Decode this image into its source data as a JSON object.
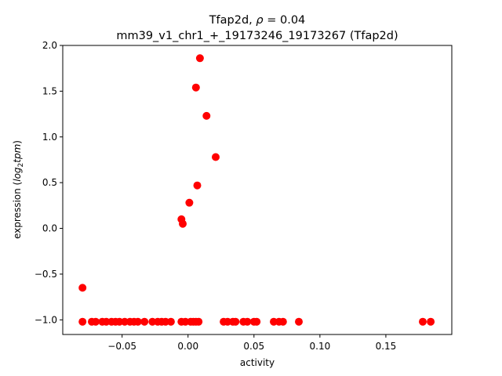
{
  "chart_data": {
    "type": "scatter",
    "title_line1_prefix": "Tfap2d, ",
    "title_line1_rho": "ρ",
    "title_line1_suffix": " = 0.04",
    "title_line2": "mm39_v1_chr1_+_19173246_19173267 (Tfap2d)",
    "xlabel": "activity",
    "ylabel_prefix": "expression (",
    "ylabel_log": "log",
    "ylabel_sub": "2",
    "ylabel_tpm": "tpm",
    "ylabel_suffix": ")",
    "xlim": [
      -0.095,
      0.2
    ],
    "ylim": [
      -1.16,
      2.0
    ],
    "xticks": [
      -0.05,
      0.0,
      0.05,
      0.1,
      0.15
    ],
    "xtick_labels": [
      "−0.05",
      "0.00",
      "0.05",
      "0.10",
      "0.15"
    ],
    "yticks": [
      -1.0,
      -0.5,
      0.0,
      0.5,
      1.0,
      1.5,
      2.0
    ],
    "ytick_labels": [
      "−1.0",
      "−0.5",
      "0.0",
      "0.5",
      "1.0",
      "1.5",
      "2.0"
    ],
    "marker_color": "#ff0000",
    "grid": false,
    "points": [
      {
        "x": -0.08,
        "y": -0.65
      },
      {
        "x": -0.08,
        "y": -1.02
      },
      {
        "x": -0.073,
        "y": -1.02
      },
      {
        "x": -0.07,
        "y": -1.02
      },
      {
        "x": -0.065,
        "y": -1.02
      },
      {
        "x": -0.062,
        "y": -1.02
      },
      {
        "x": -0.058,
        "y": -1.02
      },
      {
        "x": -0.055,
        "y": -1.02
      },
      {
        "x": -0.052,
        "y": -1.02
      },
      {
        "x": -0.048,
        "y": -1.02
      },
      {
        "x": -0.044,
        "y": -1.02
      },
      {
        "x": -0.041,
        "y": -1.02
      },
      {
        "x": -0.038,
        "y": -1.02
      },
      {
        "x": -0.033,
        "y": -1.02
      },
      {
        "x": -0.027,
        "y": -1.02
      },
      {
        "x": -0.023,
        "y": -1.02
      },
      {
        "x": -0.02,
        "y": -1.02
      },
      {
        "x": -0.017,
        "y": -1.02
      },
      {
        "x": -0.013,
        "y": -1.02
      },
      {
        "x": -0.005,
        "y": -1.02
      },
      {
        "x": -0.002,
        "y": -1.02
      },
      {
        "x": 0.002,
        "y": -1.02
      },
      {
        "x": 0.004,
        "y": -1.02
      },
      {
        "x": 0.006,
        "y": -1.02
      },
      {
        "x": 0.008,
        "y": -1.02
      },
      {
        "x": -0.005,
        "y": 0.1
      },
      {
        "x": -0.004,
        "y": 0.05
      },
      {
        "x": 0.001,
        "y": 0.28
      },
      {
        "x": 0.007,
        "y": 0.47
      },
      {
        "x": 0.006,
        "y": 1.54
      },
      {
        "x": 0.009,
        "y": 1.86
      },
      {
        "x": 0.014,
        "y": 1.23
      },
      {
        "x": 0.021,
        "y": 0.78
      },
      {
        "x": 0.027,
        "y": -1.02
      },
      {
        "x": 0.03,
        "y": -1.02
      },
      {
        "x": 0.034,
        "y": -1.02
      },
      {
        "x": 0.036,
        "y": -1.02
      },
      {
        "x": 0.042,
        "y": -1.02
      },
      {
        "x": 0.045,
        "y": -1.02
      },
      {
        "x": 0.05,
        "y": -1.02
      },
      {
        "x": 0.052,
        "y": -1.02
      },
      {
        "x": 0.065,
        "y": -1.02
      },
      {
        "x": 0.069,
        "y": -1.02
      },
      {
        "x": 0.072,
        "y": -1.02
      },
      {
        "x": 0.084,
        "y": -1.02
      },
      {
        "x": 0.178,
        "y": -1.02
      },
      {
        "x": 0.184,
        "y": -1.02
      }
    ]
  }
}
